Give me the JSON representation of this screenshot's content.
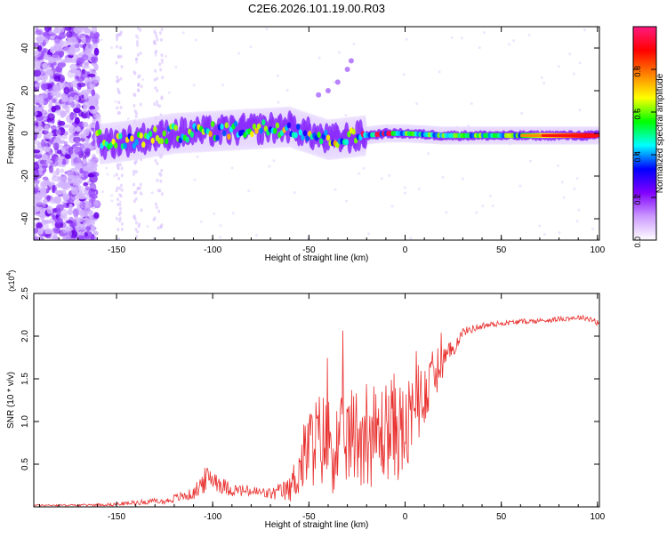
{
  "title": "C2E6.2026.101.19.00.R03",
  "chart_data": [
    {
      "type": "heatmap",
      "title": "C2E6.2026.101.19.00.R03",
      "xlabel": "Height of straight line (km)",
      "ylabel": "Frequency (Hz)",
      "xlim": [
        -193,
        101
      ],
      "ylim": [
        -50,
        50
      ],
      "xticks": [
        -150,
        -100,
        -50,
        0,
        50,
        100
      ],
      "xtick_labels": [
        "-150",
        "-100",
        "-50",
        "0",
        "50",
        "100"
      ],
      "yticks": [
        -40,
        -20,
        0,
        20,
        40
      ],
      "ytick_labels": [
        "-40",
        "-20",
        "0",
        "20",
        "40"
      ],
      "colorbar": {
        "label": "Normalized spectral amplitude",
        "range": [
          0,
          1
        ],
        "ticks": [
          0.0,
          0.2,
          0.4,
          0.6,
          0.8
        ],
        "tick_labels": [
          "0.0",
          "0.2",
          "0.4",
          "0.6",
          "0.8"
        ],
        "colors": [
          "#ffffff",
          "#cc99ff",
          "#8000ff",
          "#0000ff",
          "#00ffff",
          "#00ff00",
          "#ffff00",
          "#ff8000",
          "#ff0000",
          "#ff1a80"
        ]
      },
      "ridge": {
        "description_points_x": [
          -158,
          -140,
          -120,
          -100,
          -80,
          -60,
          -50,
          -40,
          -30,
          -20,
          -10,
          0,
          20,
          50,
          80,
          100
        ],
        "description_points_y": [
          -5,
          -3,
          0,
          1,
          2,
          3,
          0,
          -3,
          -2,
          -1,
          0,
          0,
          -1,
          -1,
          -1,
          -1
        ]
      }
    },
    {
      "type": "line",
      "xlabel": "Height of straight line (km)",
      "ylabel": "SNR (10 * v/v)",
      "y_scale_note": "(x10^4)",
      "y_scale_base": "(x10",
      "y_scale_exp": "4",
      "xlim": [
        -193,
        101
      ],
      "ylim": [
        0,
        2.5
      ],
      "xticks": [
        -150,
        -100,
        -50,
        0,
        50,
        100
      ],
      "xtick_labels": [
        "-150",
        "-100",
        "-50",
        "0",
        "50",
        "100"
      ],
      "yticks": [
        0.5,
        1.0,
        1.5,
        2.0,
        2.5
      ],
      "ytick_labels": [
        "0.5",
        "1.0",
        "1.5",
        "2.0",
        "2.5"
      ],
      "series": [
        {
          "name": "SNR",
          "color": "#e8312f",
          "x": [
            -193,
            -170,
            -150,
            -140,
            -130,
            -125,
            -120,
            -110,
            -105,
            -100,
            -95,
            -90,
            -80,
            -70,
            -60,
            -55,
            -50,
            -45,
            -40,
            -35,
            -30,
            -25,
            -20,
            -15,
            -10,
            -5,
            0,
            5,
            10,
            15,
            20,
            25,
            30,
            40,
            50,
            60,
            70,
            80,
            90,
            95,
            100
          ],
          "y": [
            0.02,
            0.02,
            0.03,
            0.05,
            0.07,
            0.06,
            0.1,
            0.15,
            0.3,
            0.35,
            0.25,
            0.2,
            0.18,
            0.15,
            0.2,
            0.45,
            0.7,
            0.8,
            0.75,
            0.7,
            0.8,
            0.85,
            0.9,
            0.8,
            0.9,
            0.95,
            0.85,
            1.1,
            1.35,
            1.55,
            1.7,
            1.85,
            2.05,
            2.12,
            2.15,
            2.17,
            2.18,
            2.2,
            2.22,
            2.21,
            2.17
          ],
          "noise": [
            0.01,
            0.01,
            0.02,
            0.03,
            0.03,
            0.03,
            0.05,
            0.07,
            0.15,
            0.15,
            0.1,
            0.08,
            0.07,
            0.07,
            0.15,
            0.35,
            0.5,
            0.55,
            0.6,
            0.55,
            0.55,
            0.6,
            0.65,
            0.6,
            0.6,
            0.65,
            0.55,
            0.5,
            0.4,
            0.3,
            0.2,
            0.1,
            0.05,
            0.04,
            0.03,
            0.03,
            0.03,
            0.03,
            0.03,
            0.03,
            0.05
          ]
        }
      ]
    }
  ]
}
